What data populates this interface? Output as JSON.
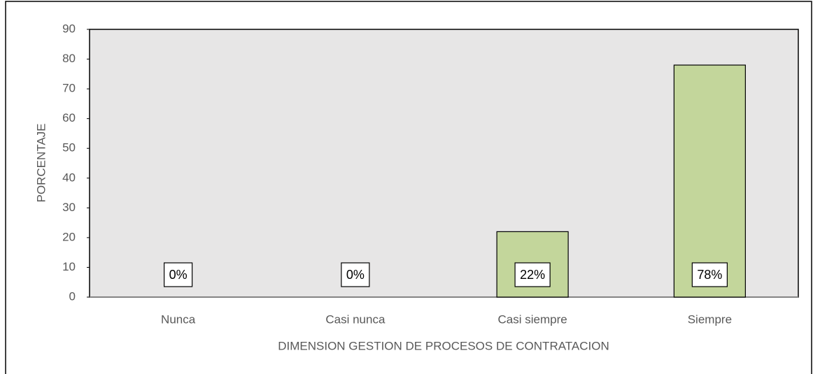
{
  "chart_data": {
    "type": "bar",
    "categories": [
      "Nunca",
      "Casi nunca",
      "Casi siempre",
      "Siempre"
    ],
    "values": [
      0,
      0,
      22,
      78
    ],
    "value_labels": [
      "0%",
      "0%",
      "22%",
      "78%"
    ],
    "color": "#c3d69b",
    "xlabel": "DIMENSION GESTION DE PROCESOS DE CONTRATACION",
    "ylabel": "PORCENTAJE",
    "ylim": [
      0,
      90
    ],
    "yticks": [
      0,
      10,
      20,
      30,
      40,
      50,
      60,
      70,
      80,
      90
    ]
  }
}
